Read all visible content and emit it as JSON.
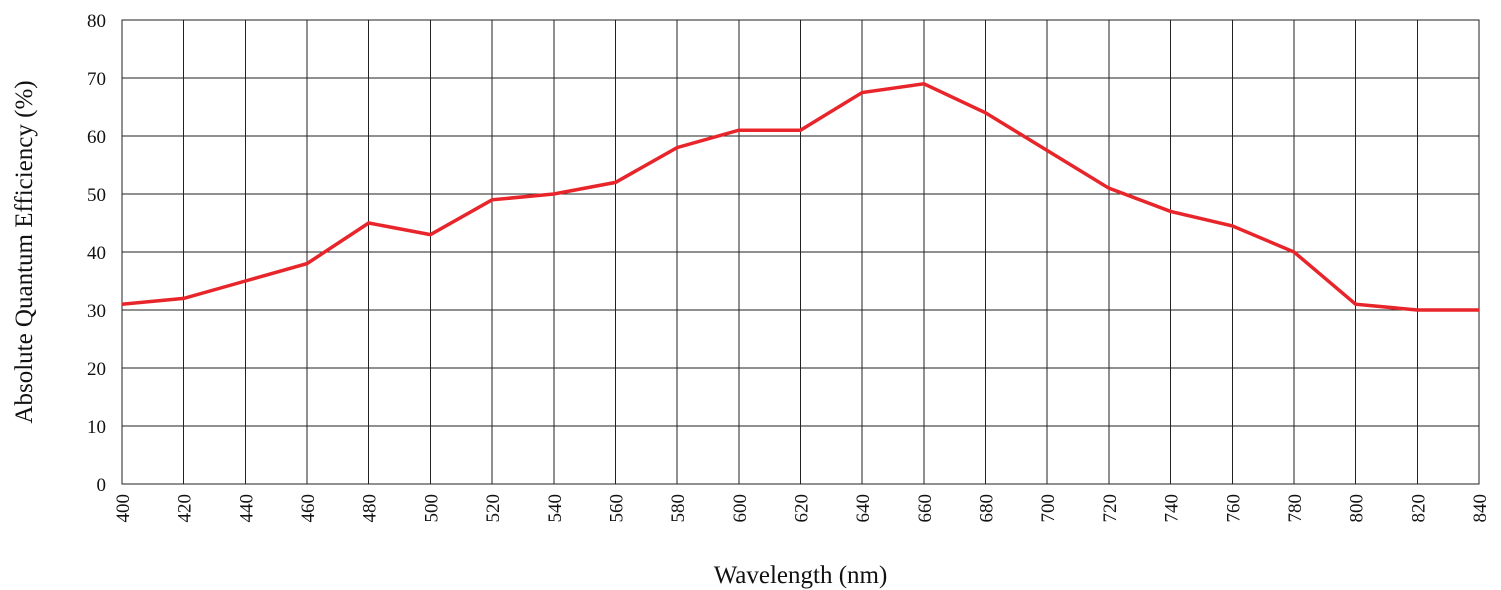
{
  "chart_data": {
    "type": "line",
    "title": "",
    "xlabel": "Wavelength (nm)",
    "ylabel": "Absolute Quantum Efficiency (%)",
    "xlim": [
      400,
      840
    ],
    "ylim": [
      0,
      80
    ],
    "x_ticks": [
      400,
      420,
      440,
      460,
      480,
      500,
      520,
      540,
      560,
      580,
      600,
      620,
      640,
      660,
      680,
      700,
      720,
      740,
      760,
      780,
      800,
      820,
      840
    ],
    "y_ticks": [
      0,
      10,
      20,
      30,
      40,
      50,
      60,
      70,
      80
    ],
    "grid": true,
    "legend": "none",
    "x": [
      400,
      420,
      440,
      460,
      480,
      500,
      520,
      540,
      560,
      580,
      600,
      620,
      640,
      660,
      680,
      700,
      720,
      740,
      760,
      780,
      800,
      820,
      840
    ],
    "series": [
      {
        "color": "#e8252a",
        "values": [
          31,
          32,
          35,
          38,
          45,
          43,
          49,
          50,
          52,
          58,
          61,
          61,
          67.5,
          69,
          64,
          57.5,
          51,
          47,
          44.5,
          40,
          31,
          30,
          30
        ]
      }
    ]
  }
}
